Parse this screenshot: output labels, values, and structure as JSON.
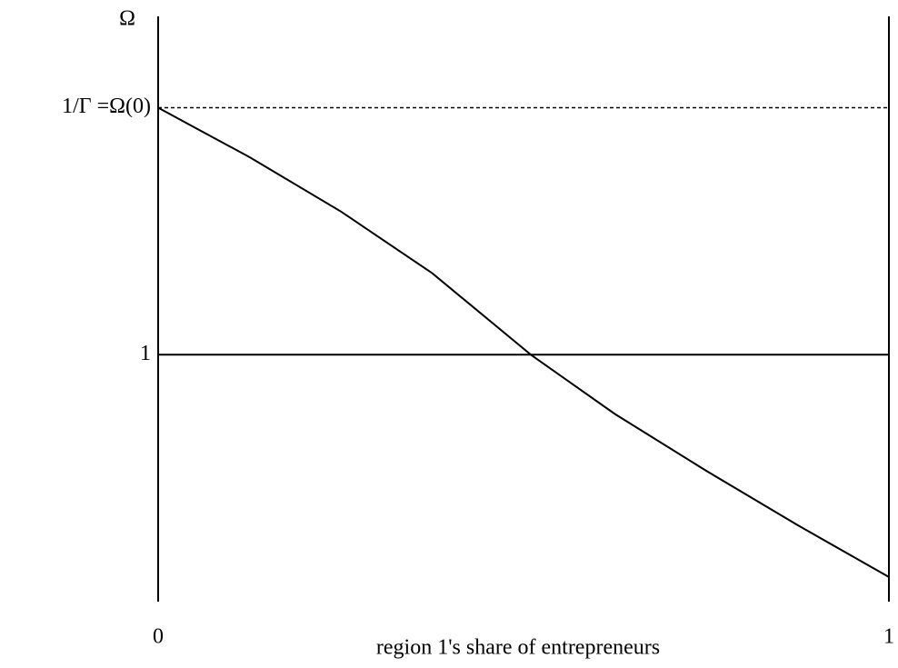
{
  "chart_data": {
    "type": "line",
    "ylabel": "Ω",
    "xlabel": "region 1's share of entrepreneurs",
    "x": [
      0,
      0.125,
      0.25,
      0.375,
      0.51,
      0.625,
      0.75,
      0.875,
      1
    ],
    "series": [
      {
        "name": "Ω",
        "color": "#000000",
        "values": [
          2.0,
          1.8,
          1.58,
          1.33,
          1.0,
          0.76,
          0.53,
          0.31,
          0.1
        ]
      }
    ],
    "xlim": [
      0,
      1
    ],
    "ylim": [
      0,
      2.37
    ],
    "xticks": [
      0,
      1
    ],
    "yticks": [
      1,
      {
        "value": 2.0,
        "label": "1/Γ =Ω(0)"
      }
    ],
    "grid": true,
    "grid_styles": [
      "solid",
      "dashed"
    ]
  }
}
